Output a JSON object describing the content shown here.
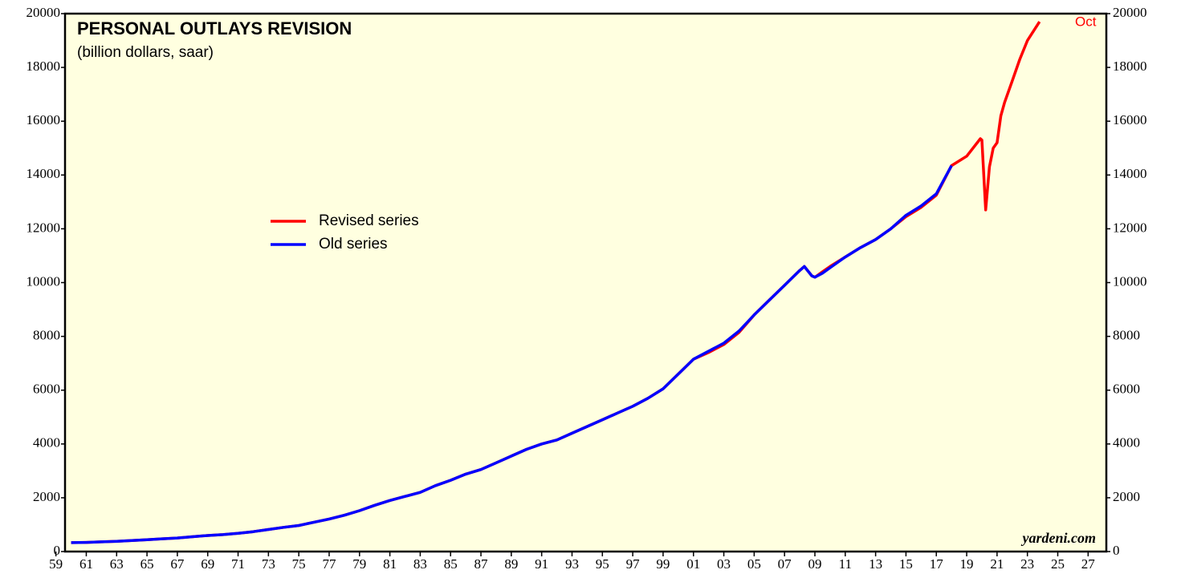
{
  "chart_data": {
    "type": "line",
    "title": "PERSONAL OUTLAYS REVISION",
    "subtitle": "(billion dollars, saar)",
    "annotations": [
      "Oct",
      "yardeni.com"
    ],
    "x": [
      1960,
      1961,
      1962,
      1963,
      1964,
      1965,
      1966,
      1967,
      1968,
      1969,
      1970,
      1971,
      1972,
      1973,
      1974,
      1975,
      1976,
      1977,
      1978,
      1979,
      1980,
      1981,
      1982,
      1983,
      1984,
      1985,
      1986,
      1987,
      1988,
      1989,
      1990,
      1991,
      1992,
      1993,
      1994,
      1995,
      1996,
      1997,
      1998,
      1999,
      2000,
      2001,
      2002,
      2003,
      2004,
      2005,
      2006,
      2007,
      2008,
      2008.3,
      2008.8,
      2009,
      2009.5,
      2010,
      2011,
      2012,
      2013,
      2014,
      2015,
      2016,
      2017,
      2018,
      2019,
      2019.9,
      2020,
      2020.25,
      2020.5,
      2020.75,
      2021,
      2021.25,
      2021.5,
      2022,
      2022.5,
      2023,
      2023.8
    ],
    "series": [
      {
        "name": "Revised series",
        "color": "#ff0000",
        "values": [
          330,
          340,
          362,
          381,
          410,
          440,
          475,
          505,
          550,
          595,
          630,
          680,
          740,
          820,
          900,
          970,
          1090,
          1210,
          1350,
          1520,
          1720,
          1900,
          2050,
          2200,
          2450,
          2650,
          2880,
          3050,
          3300,
          3550,
          3800,
          4000,
          4150,
          4400,
          4650,
          4900,
          5150,
          5400,
          5700,
          6050,
          6600,
          7150,
          7400,
          7700,
          8150,
          8800,
          9350,
          9900,
          10450,
          10600,
          10250,
          10200,
          10400,
          10600,
          10950,
          11300,
          11600,
          12000,
          12450,
          12800,
          13250,
          14350,
          14700,
          15350,
          15300,
          12700,
          14300,
          15000,
          15200,
          16200,
          16700,
          17500,
          18300,
          19000,
          19700
        ]
      },
      {
        "name": "Old series",
        "color": "#0000ff",
        "values": [
          330,
          340,
          362,
          381,
          410,
          440,
          475,
          505,
          550,
          595,
          630,
          680,
          740,
          820,
          900,
          970,
          1090,
          1210,
          1350,
          1520,
          1720,
          1900,
          2050,
          2200,
          2450,
          2650,
          2880,
          3050,
          3300,
          3550,
          3800,
          4000,
          4150,
          4400,
          4650,
          4900,
          5150,
          5400,
          5700,
          6050,
          6600,
          7150,
          7450,
          7750,
          8200,
          8800,
          9350,
          9900,
          10450,
          10600,
          10250,
          10200,
          10350,
          10550,
          10950,
          11300,
          11600,
          12000,
          12500,
          12850,
          13300,
          14350,
          null,
          null,
          null,
          null,
          null,
          null,
          null,
          null,
          null,
          null,
          null,
          null,
          null
        ]
      }
    ],
    "xlim": [
      1959.6,
      2028.2
    ],
    "xticks": [
      {
        "value": 1959,
        "label": "59"
      },
      {
        "value": 1961,
        "label": "61"
      },
      {
        "value": 1963,
        "label": "63"
      },
      {
        "value": 1965,
        "label": "65"
      },
      {
        "value": 1967,
        "label": "67"
      },
      {
        "value": 1969,
        "label": "69"
      },
      {
        "value": 1971,
        "label": "71"
      },
      {
        "value": 1973,
        "label": "73"
      },
      {
        "value": 1975,
        "label": "75"
      },
      {
        "value": 1977,
        "label": "77"
      },
      {
        "value": 1979,
        "label": "79"
      },
      {
        "value": 1981,
        "label": "81"
      },
      {
        "value": 1983,
        "label": "83"
      },
      {
        "value": 1985,
        "label": "85"
      },
      {
        "value": 1987,
        "label": "87"
      },
      {
        "value": 1989,
        "label": "89"
      },
      {
        "value": 1991,
        "label": "91"
      },
      {
        "value": 1993,
        "label": "93"
      },
      {
        "value": 1995,
        "label": "95"
      },
      {
        "value": 1997,
        "label": "97"
      },
      {
        "value": 1999,
        "label": "99"
      },
      {
        "value": 2001,
        "label": "01"
      },
      {
        "value": 2003,
        "label": "03"
      },
      {
        "value": 2005,
        "label": "05"
      },
      {
        "value": 2007,
        "label": "07"
      },
      {
        "value": 2009,
        "label": "09"
      },
      {
        "value": 2011,
        "label": "11"
      },
      {
        "value": 2013,
        "label": "13"
      },
      {
        "value": 2015,
        "label": "15"
      },
      {
        "value": 2017,
        "label": "17"
      },
      {
        "value": 2019,
        "label": "19"
      },
      {
        "value": 2021,
        "label": "21"
      },
      {
        "value": 2023,
        "label": "23"
      },
      {
        "value": 2025,
        "label": "25"
      },
      {
        "value": 2027,
        "label": "27"
      }
    ],
    "ylim": [
      0,
      20000
    ],
    "yticks": [
      0,
      2000,
      4000,
      6000,
      8000,
      10000,
      12000,
      14000,
      16000,
      18000,
      20000
    ],
    "grid": false
  }
}
